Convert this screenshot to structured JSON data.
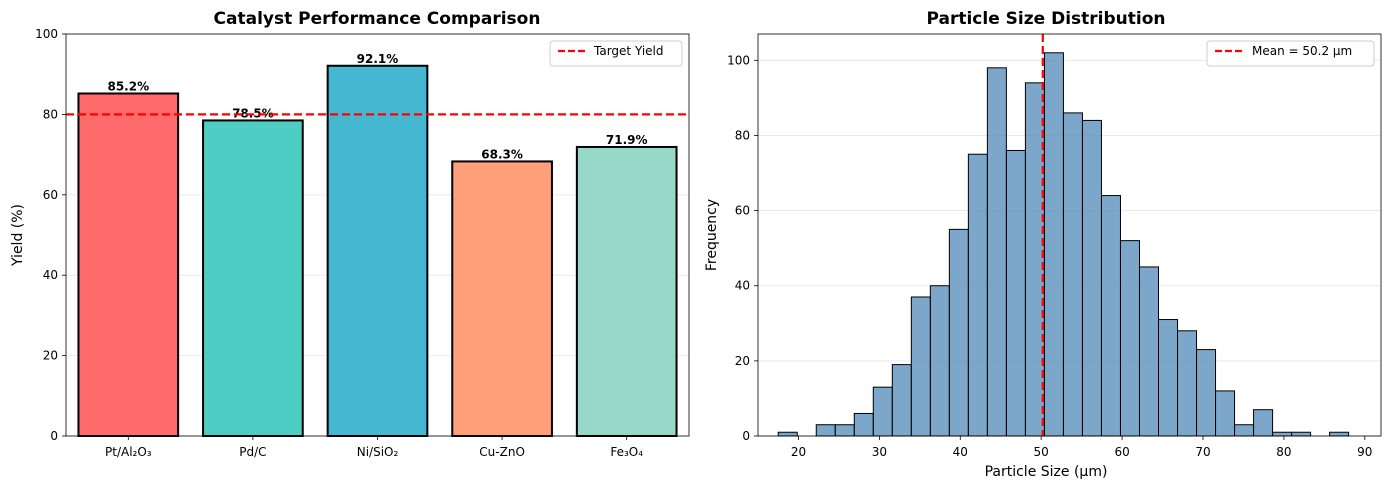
{
  "chart_data": [
    {
      "type": "bar",
      "title": "Catalyst Performance Comparison",
      "xlabel": "",
      "ylabel": "Yield (%)",
      "categories": [
        "Pt/Al₂O₃",
        "Pd/C",
        "Ni/SiO₂",
        "Cu-ZnO",
        "Fe₃O₄"
      ],
      "values": [
        85.2,
        78.5,
        92.1,
        68.3,
        71.9
      ],
      "value_labels": [
        "85.2%",
        "78.5%",
        "92.1%",
        "68.3%",
        "71.9%"
      ],
      "colors": [
        "#FF6B6B",
        "#4ECDC4",
        "#45B7D1",
        "#FFA07A",
        "#98D8C8"
      ],
      "ylim": [
        0,
        100
      ],
      "yticks": [
        0,
        20,
        40,
        60,
        80,
        100
      ],
      "reference_line": {
        "value": 80,
        "label": "Target Yield",
        "color": "#FF0000",
        "style": "dashed"
      },
      "grid": "y-axis, light",
      "legend": "top-right"
    },
    {
      "type": "bar",
      "subtype": "histogram",
      "title": "Particle Size Distribution",
      "xlabel": "Particle Size (μm)",
      "ylabel": "Frequency",
      "bin_edges": [
        17.5,
        19.85,
        22.2,
        24.55,
        26.9,
        29.25,
        31.6,
        33.95,
        36.3,
        38.65,
        41.0,
        43.35,
        45.7,
        48.05,
        50.4,
        52.75,
        55.1,
        57.45,
        59.8,
        62.15,
        64.5,
        66.85,
        69.2,
        71.55,
        73.9,
        76.25,
        78.6,
        80.95,
        83.3,
        85.65,
        88.0
      ],
      "values": [
        1,
        0,
        3,
        3,
        6,
        13,
        19,
        37,
        40,
        55,
        75,
        98,
        76,
        94,
        102,
        86,
        84,
        64,
        52,
        45,
        31,
        28,
        23,
        12,
        3,
        7,
        1,
        1,
        0,
        1
      ],
      "bar_color": "#4682B4",
      "xlim": [
        15,
        92
      ],
      "ylim": [
        0,
        107
      ],
      "xticks": [
        20,
        30,
        40,
        50,
        60,
        70,
        80,
        90
      ],
      "yticks": [
        0,
        20,
        40,
        60,
        80,
        100
      ],
      "reference_line": {
        "value": 50.2,
        "label": "Mean = 50.2 μm",
        "color": "#FF0000",
        "style": "dashed"
      },
      "grid": "y-axis, light",
      "legend": "top-right"
    }
  ]
}
